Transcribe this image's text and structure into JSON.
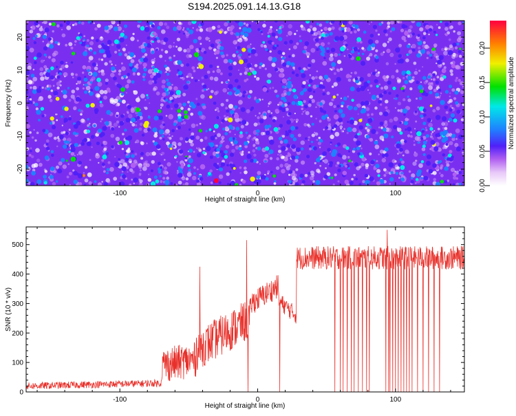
{
  "title": "S194.2025.091.14.13.G18",
  "chart_data": [
    {
      "type": "heatmap",
      "xlabel": "Height of straight line (km)",
      "ylabel": "Frequency (Hz)",
      "xlim": [
        -168,
        150
      ],
      "ylim": [
        -25,
        25
      ],
      "x_ticks": [
        -100,
        0,
        100
      ],
      "y_ticks": [
        -20,
        -10,
        0,
        10,
        20
      ],
      "colorbar": {
        "label": "Normalized spectral amplitude",
        "range": [
          0,
          0.24
        ],
        "ticks": [
          0.0,
          0.05,
          0.1,
          0.15,
          0.2
        ],
        "tick_labels": [
          "0.00",
          "0.05",
          "0.10",
          "0.15",
          "0.20"
        ],
        "colors": [
          "#ffffff",
          "#e8c8f8",
          "#b060f0",
          "#5020f8",
          "#2080ff",
          "#00e8e8",
          "#00e000",
          "#f0f000",
          "#ff8000",
          "#ff0040"
        ]
      },
      "background_color": "#7a2ff0",
      "speckle": "dense random low-amplitude texture (values mostly 0.02-0.08) with scattered peaks up to ~0.2; a few white gaps near x=-30 km"
    },
    {
      "type": "line",
      "xlabel": "Height of straight line (km)",
      "ylabel": "SNR (10 * v/v)",
      "xlim": [
        -168,
        150
      ],
      "ylim": [
        0,
        560
      ],
      "x_ticks": [
        -100,
        0,
        100
      ],
      "y_ticks": [
        0,
        100,
        200,
        300,
        400,
        500
      ],
      "line_color": "#e8302a",
      "description": "noisy trace",
      "segments": [
        {
          "x": [
            -168,
            -70
          ],
          "baseline": [
            20,
            30
          ],
          "noise": 12
        },
        {
          "x": [
            -70,
            -45
          ],
          "baseline": [
            90,
            110
          ],
          "noise": 60
        },
        {
          "x": [
            -45,
            -5
          ],
          "baseline": [
            140,
            250
          ],
          "noise": 70
        },
        {
          "x": [
            -5,
            15
          ],
          "baseline": [
            300,
            360
          ],
          "noise": 40
        },
        {
          "x": [
            15,
            28
          ],
          "baseline": [
            310,
            260
          ],
          "noise": 30
        },
        {
          "x": [
            28,
            150
          ],
          "baseline": [
            455,
            455
          ],
          "noise": 40
        }
      ],
      "dropouts_to_zero_x": [
        -7,
        16,
        56,
        60,
        62,
        65,
        68,
        70,
        73,
        76,
        79,
        81,
        93,
        95,
        96,
        98,
        100,
        102,
        104,
        106,
        108,
        110,
        112,
        116,
        120,
        124,
        128,
        132
      ],
      "peaks": [
        {
          "x": -8,
          "y": 515
        },
        {
          "x": 94,
          "y": 550
        },
        {
          "x": -42,
          "y": 425
        }
      ]
    }
  ]
}
